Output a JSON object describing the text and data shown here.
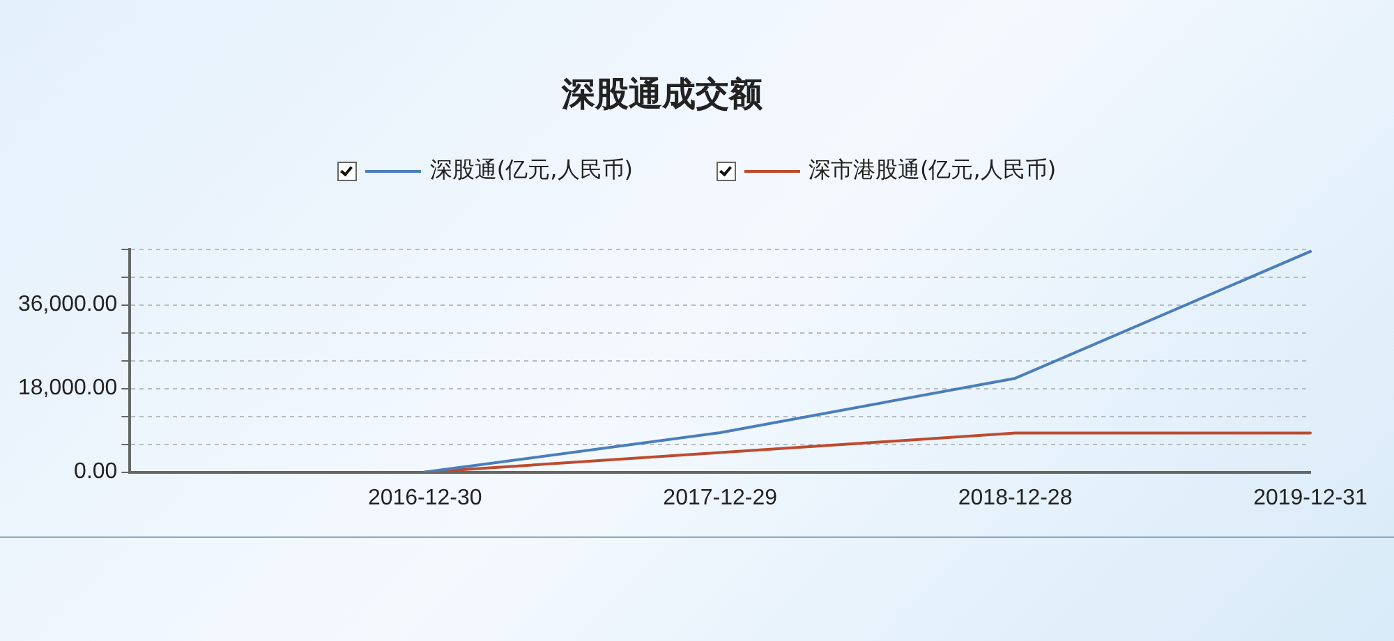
{
  "chart_data": {
    "type": "line",
    "title": "深股通成交额",
    "categories": [
      null,
      "2016-12-30",
      "2017-12-29",
      "2018-12-28",
      "2019-12-31"
    ],
    "series": [
      {
        "name": "深股通(亿元,人民币)",
        "color": "#4a7ebb",
        "values": [
          null,
          0,
          8500,
          20200,
          47500
        ]
      },
      {
        "name": "深市港股通(亿元,人民币)",
        "color": "#be4b2e",
        "values": [
          null,
          0,
          4200,
          8400,
          8400
        ]
      }
    ],
    "ylim": [
      0,
      48000
    ],
    "yticks": [
      {
        "value": 0,
        "label": "0.00"
      },
      {
        "value": 6000,
        "label": null
      },
      {
        "value": 12000,
        "label": null
      },
      {
        "value": 18000,
        "label": "18,000.00"
      },
      {
        "value": 24000,
        "label": null
      },
      {
        "value": 30000,
        "label": null
      },
      {
        "value": 36000,
        "label": "36,000.00"
      },
      {
        "value": 42000,
        "label": null
      },
      {
        "value": 48000,
        "label": null
      }
    ],
    "grid": "y",
    "legend": "top",
    "marker": "none",
    "line_style": "solid"
  }
}
